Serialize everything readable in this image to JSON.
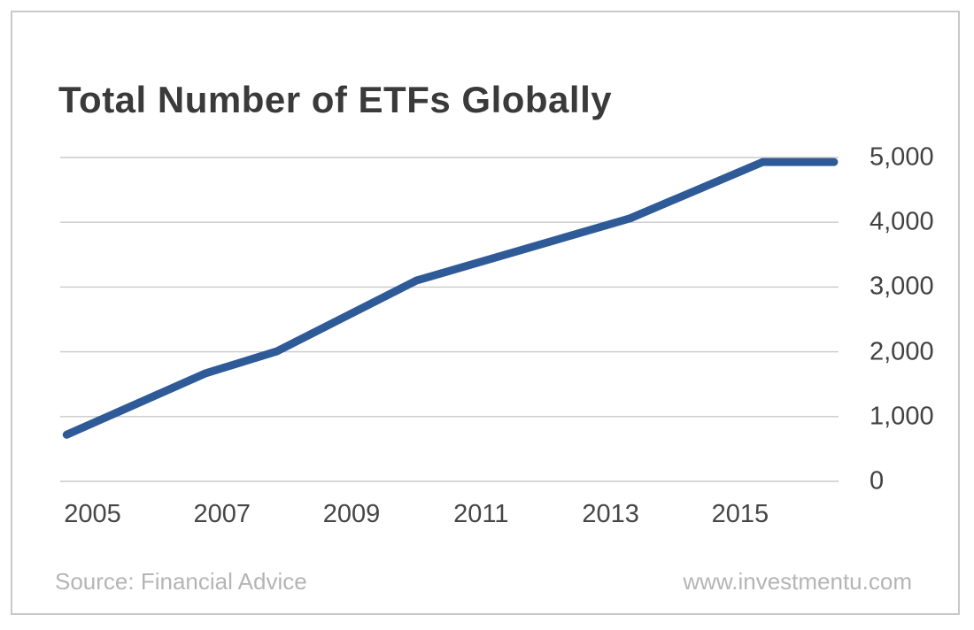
{
  "chart_data": {
    "type": "line",
    "title": "Total Number of ETFs Globally",
    "xlabel": "",
    "ylabel": "",
    "x_range": [
      2004.5,
      2016.52
    ],
    "y_range": [
      0,
      5000
    ],
    "grid": "horizontal-only",
    "y_axis_side": "right",
    "x_ticks": [
      {
        "value": 2005,
        "label": "2005"
      },
      {
        "value": 2007,
        "label": "2007"
      },
      {
        "value": 2009,
        "label": "2009"
      },
      {
        "value": 2011,
        "label": "2011"
      },
      {
        "value": 2013,
        "label": "2013"
      },
      {
        "value": 2015,
        "label": "2015"
      }
    ],
    "y_ticks": [
      {
        "value": 0,
        "label": "0"
      },
      {
        "value": 1000,
        "label": "1,000"
      },
      {
        "value": 2000,
        "label": "2,000"
      },
      {
        "value": 3000,
        "label": "3,000"
      },
      {
        "value": 4000,
        "label": "4,000"
      },
      {
        "value": 5000,
        "label": "5,000"
      }
    ],
    "series": [
      {
        "name": "Total number of ETFs globally",
        "color": "#2e5b98",
        "stroke_width": 9,
        "points": [
          {
            "x": 2004.6,
            "y": 720
          },
          {
            "x": 2006.75,
            "y": 1670
          },
          {
            "x": 2007.85,
            "y": 2010
          },
          {
            "x": 2010.0,
            "y": 3100
          },
          {
            "x": 2013.3,
            "y": 4060
          },
          {
            "x": 2015.35,
            "y": 4930
          },
          {
            "x": 2016.45,
            "y": 4930
          }
        ],
        "approx_values_by_year": {
          "2005": 900,
          "2006": 1350,
          "2007": 1750,
          "2008": 2100,
          "2009": 2600,
          "2010": 3100,
          "2011": 3400,
          "2012": 3700,
          "2013": 3990,
          "2014": 4370,
          "2015": 4800,
          "2016": 4930
        }
      }
    ],
    "legend": "none"
  },
  "footer": {
    "source": "Source: Financial Advice",
    "website": "www.investmentu.com"
  },
  "colors": {
    "line": "#2e5b98",
    "title_text": "#3a3a3a",
    "tick_text": "#414141",
    "muted_text": "#b5b5b5",
    "gridline": "#c9c9c9",
    "frame_border": "#c9c9c9",
    "background": "#ffffff"
  }
}
